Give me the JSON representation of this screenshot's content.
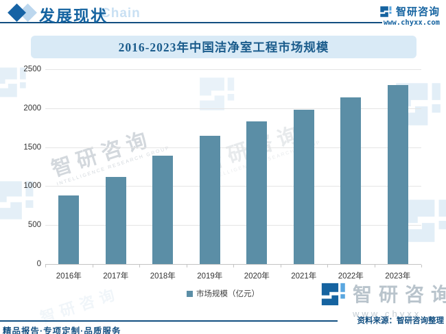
{
  "colors": {
    "primary": "#1563a0",
    "rule": "#114e80",
    "bar": "#5b8ea6",
    "title_band_bg": "#d9eaf6",
    "title_text": "#1b5c8c",
    "light_accent": "#bcd7ee",
    "watermark_gray": "#b6bfc7",
    "watermark_blue": "#cfe3f2"
  },
  "header": {
    "section_title": "发展现状",
    "section_subtitle": "Chain",
    "brand_name": "智研咨询",
    "brand_url": "www.chyxx.com"
  },
  "chart_data": {
    "type": "bar",
    "title": "2016-2023年中国洁净室工程市场规模",
    "categories": [
      "2016年",
      "2017年",
      "2018年",
      "2019年",
      "2020年",
      "2021年",
      "2022年",
      "2023年"
    ],
    "values": [
      880,
      1115,
      1395,
      1650,
      1830,
      1985,
      2140,
      2300
    ],
    "series_name": "市场规模（亿元）",
    "xlabel": "",
    "ylabel": "",
    "ylim": [
      0,
      2500
    ],
    "yticks": [
      0,
      500,
      1000,
      1500,
      2000,
      2500
    ],
    "grid": true,
    "legend_position": "bottom",
    "bar_color": "#5b8ea6"
  },
  "legend": {
    "label": "市场规模（亿元）"
  },
  "watermark": {
    "text": "智研咨询",
    "subtext": "INTELLIGENCE RESEARCH GROUP",
    "brand_name": "智研咨询",
    "brand_url_partial": "www.chyxx"
  },
  "footer": {
    "source": "资料来源：智研咨询整理",
    "tagline": "精品报告·专项定制·品质服务"
  }
}
